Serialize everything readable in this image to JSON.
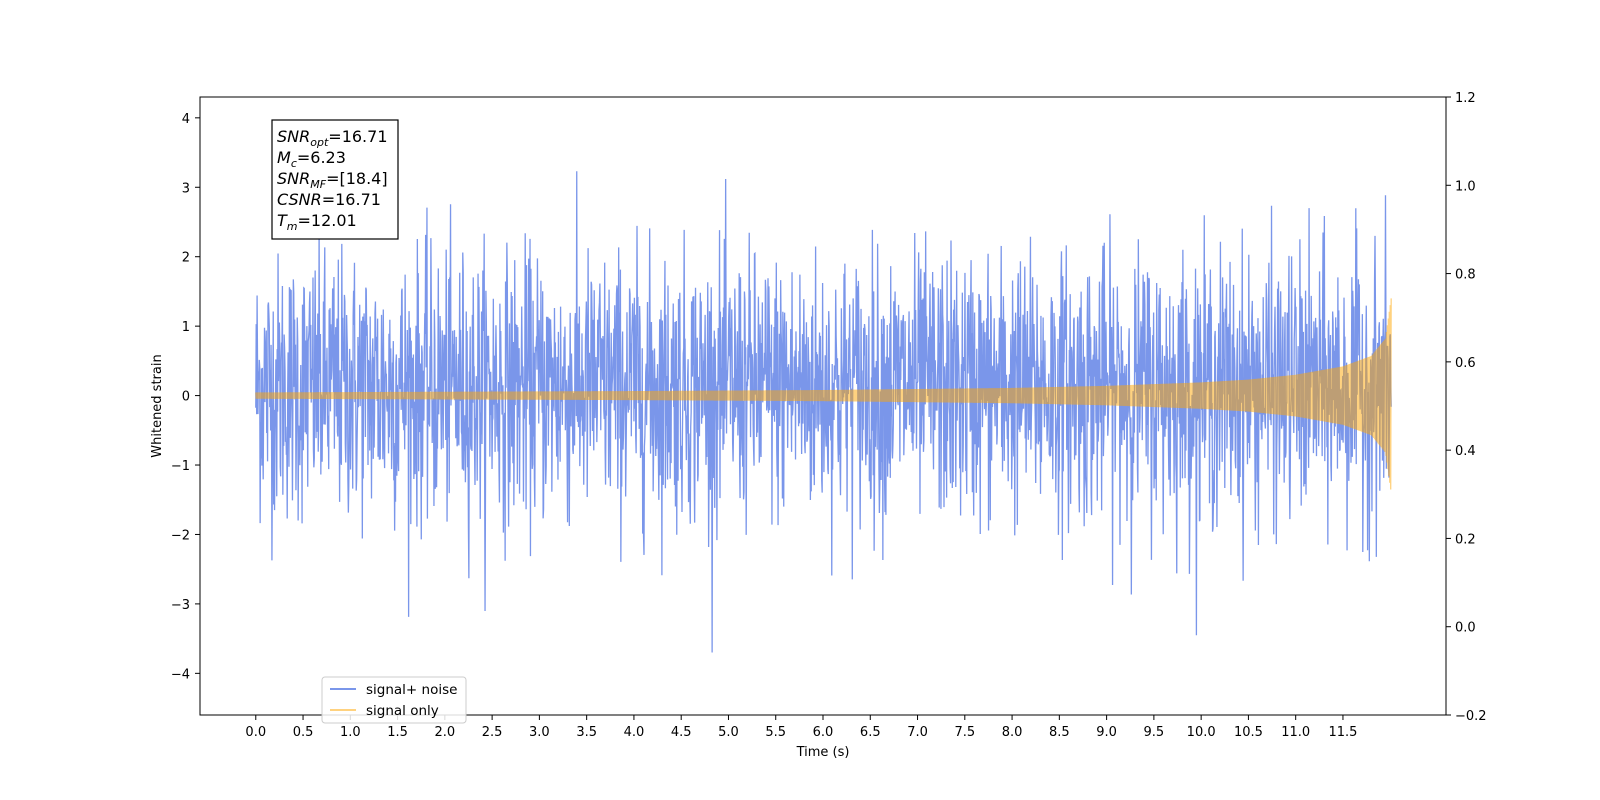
{
  "chart_data": {
    "type": "line",
    "xlabel": "Time (s)",
    "ylabel": "Whitened strain",
    "xlim": [
      -0.59,
      12.59
    ],
    "ylim": [
      -4.6,
      4.3
    ],
    "y2lim": [
      -0.2,
      1.2
    ],
    "x_ticks": [
      "0.0",
      "0.5",
      "1.0",
      "1.5",
      "2.0",
      "2.5",
      "3.0",
      "3.5",
      "4.0",
      "4.5",
      "5.0",
      "5.5",
      "6.0",
      "6.5",
      "7.0",
      "7.5",
      "8.0",
      "8.5",
      "9.0",
      "9.5",
      "10.0",
      "10.5",
      "11.0",
      "11.5"
    ],
    "y_ticks": [
      "4",
      "3",
      "2",
      "1",
      "0",
      "−1",
      "−2",
      "−3",
      "−4"
    ],
    "y2_ticks": [
      "1.2",
      "1.0",
      "0.8",
      "0.6",
      "0.4",
      "0.2",
      "0.0",
      "−0.2"
    ],
    "grid": false,
    "legend_position": "lower-left",
    "series": [
      {
        "name": "signal+ noise",
        "color": "#4169e1",
        "opacity": 0.7,
        "t_start": 0.0,
        "t_end": 12.01,
        "description_values": {
          "typical_amplitude": [
            -1.4,
            1.6
          ],
          "max": 3.88,
          "min": -4.05
        }
      },
      {
        "name": "signal only",
        "color": "#ffa500",
        "opacity": 0.5,
        "t_start": 0.0,
        "t_end": 12.01,
        "envelope": {
          "t": [
            0.0,
            2.0,
            4.0,
            6.0,
            8.0,
            9.0,
            10.0,
            10.5,
            11.0,
            11.5,
            11.8,
            11.95,
            12.01
          ],
          "amplitude": [
            0.045,
            0.055,
            0.065,
            0.08,
            0.11,
            0.14,
            0.19,
            0.23,
            0.3,
            0.42,
            0.57,
            0.82,
            1.4
          ]
        }
      }
    ],
    "annotation": {
      "lines": [
        {
          "symbol": "SNR",
          "sub": "opt",
          "value": "=16.71"
        },
        {
          "symbol": "M",
          "sub": "c",
          "value": "=6.23"
        },
        {
          "symbol": "SNR",
          "sub": "MF",
          "value": "=[18.4]"
        },
        {
          "symbol": "CSNR",
          "sub": "",
          "value": "=16.71"
        },
        {
          "symbol": "T",
          "sub": "m",
          "value": "=12.01"
        }
      ]
    }
  }
}
